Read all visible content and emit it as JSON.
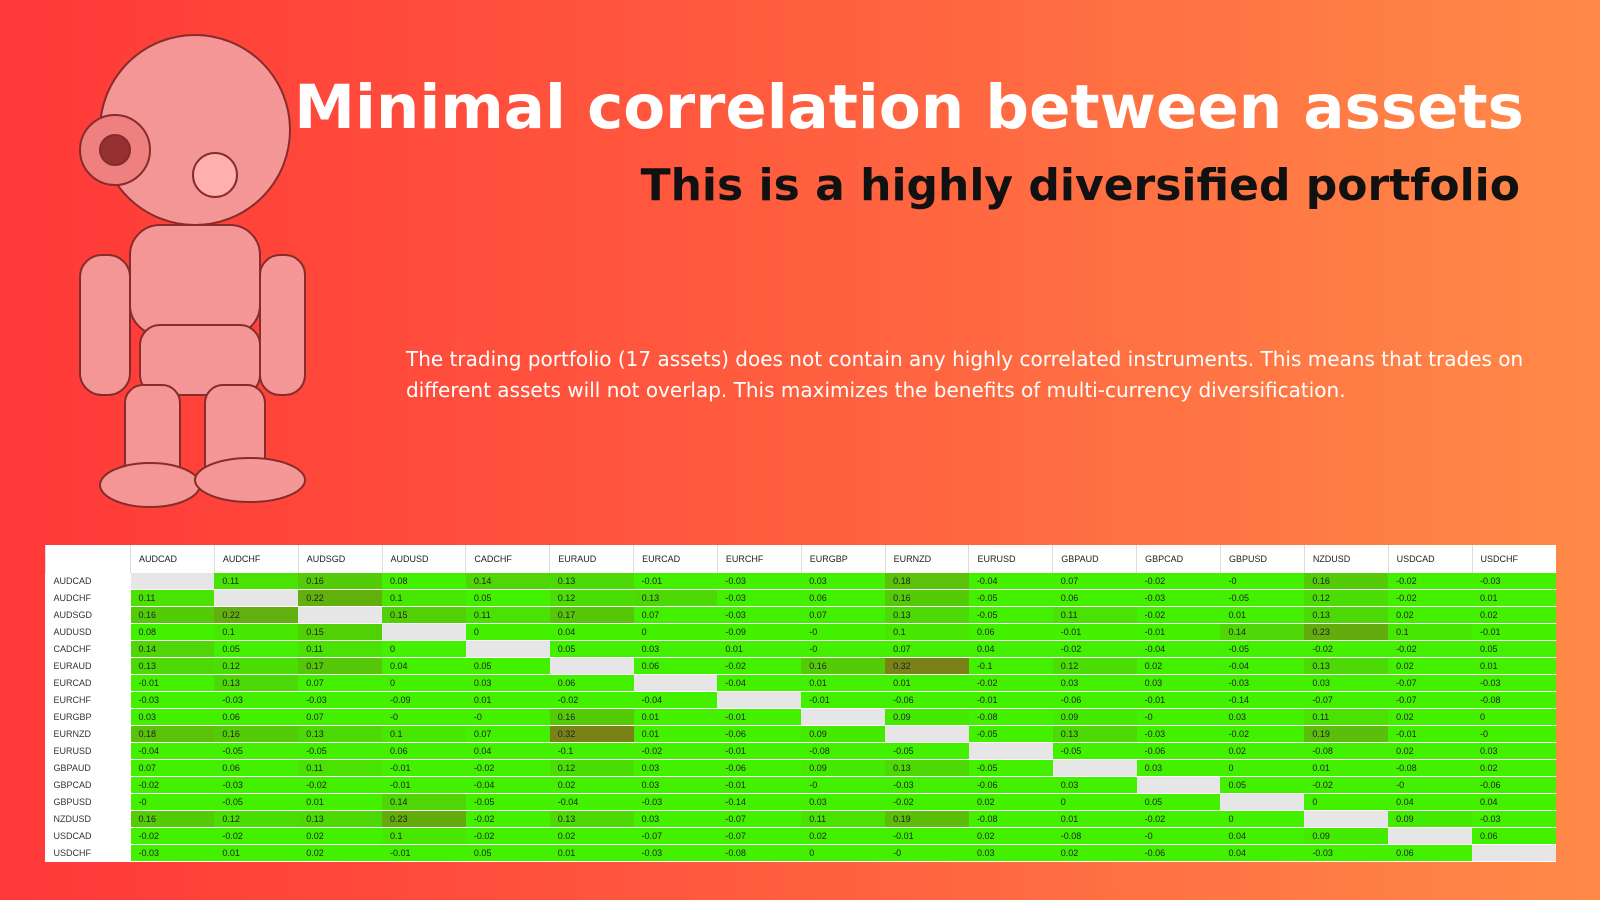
{
  "header": {
    "title": "Minimal correlation between assets",
    "subtitle": "This is a highly diversified portfolio"
  },
  "description": "The trading portfolio (17 assets) does not contain any highly correlated instruments. This means that trades on different assets will not overlap. This maximizes the benefits of multi-currency diversification.",
  "table": {
    "columns": [
      "AUDCAD",
      "AUDCHF",
      "AUDSGD",
      "AUDUSD",
      "CADCHF",
      "EURAUD",
      "EURCAD",
      "EURCHF",
      "EURGBP",
      "EURNZD",
      "EURUSD",
      "GBPAUD",
      "GBPCAD",
      "GBPUSD",
      "NZDUSD",
      "USDCAD",
      "USDCHF"
    ],
    "rows": [
      {
        "label": "AUDCAD",
        "values": [
          null,
          "0.11",
          "0.16",
          "0.08",
          "0.14",
          "0.13",
          "-0.01",
          "-0.03",
          "0.03",
          "0.18",
          "-0.04",
          "0.07",
          "-0.02",
          "-0",
          "0.16",
          "-0.02",
          "-0.03"
        ]
      },
      {
        "label": "AUDCHF",
        "values": [
          "0.11",
          null,
          "0.22",
          "0.1",
          "0.05",
          "0.12",
          "0.13",
          "-0.03",
          "0.06",
          "0.16",
          "-0.05",
          "0.06",
          "-0.03",
          "-0.05",
          "0.12",
          "-0.02",
          "0.01"
        ]
      },
      {
        "label": "AUDSGD",
        "values": [
          "0.16",
          "0.22",
          null,
          "0.15",
          "0.11",
          "0.17",
          "0.07",
          "-0.03",
          "0.07",
          "0.13",
          "-0.05",
          "0.11",
          "-0.02",
          "0.01",
          "0.13",
          "0.02",
          "0.02"
        ]
      },
      {
        "label": "AUDUSD",
        "values": [
          "0.08",
          "0.1",
          "0.15",
          null,
          "0",
          "0.04",
          "0",
          "-0.09",
          "-0",
          "0.1",
          "0.06",
          "-0.01",
          "-0.01",
          "0.14",
          "0.23",
          "0.1",
          "-0.01"
        ]
      },
      {
        "label": "CADCHF",
        "values": [
          "0.14",
          "0.05",
          "0.11",
          "0",
          null,
          "0.05",
          "0.03",
          "0.01",
          "-0",
          "0.07",
          "0.04",
          "-0.02",
          "-0.04",
          "-0.05",
          "-0.02",
          "-0.02",
          "0.05"
        ]
      },
      {
        "label": "EURAUD",
        "values": [
          "0.13",
          "0.12",
          "0.17",
          "0.04",
          "0.05",
          null,
          "0.06",
          "-0.02",
          "0.16",
          "0.32",
          "-0.1",
          "0.12",
          "0.02",
          "-0.04",
          "0.13",
          "0.02",
          "0.01"
        ]
      },
      {
        "label": "EURCAD",
        "values": [
          "-0.01",
          "0.13",
          "0.07",
          "0",
          "0.03",
          "0.06",
          null,
          "-0.04",
          "0.01",
          "0.01",
          "-0.02",
          "0.03",
          "0.03",
          "-0.03",
          "0.03",
          "-0.07",
          "-0.03"
        ]
      },
      {
        "label": "EURCHF",
        "values": [
          "-0.03",
          "-0.03",
          "-0.03",
          "-0.09",
          "0.01",
          "-0.02",
          "-0.04",
          null,
          "-0.01",
          "-0.06",
          "-0.01",
          "-0.06",
          "-0.01",
          "-0.14",
          "-0.07",
          "-0.07",
          "-0.08"
        ]
      },
      {
        "label": "EURGBP",
        "values": [
          "0.03",
          "0.06",
          "0.07",
          "-0",
          "-0",
          "0.16",
          "0.01",
          "-0.01",
          null,
          "0.09",
          "-0.08",
          "0.09",
          "-0",
          "0.03",
          "0.11",
          "0.02",
          "0"
        ]
      },
      {
        "label": "EURNZD",
        "values": [
          "0.18",
          "0.16",
          "0.13",
          "0.1",
          "0.07",
          "0.32",
          "0.01",
          "-0.06",
          "0.09",
          null,
          "-0.05",
          "0.13",
          "-0.03",
          "-0.02",
          "0.19",
          "-0.01",
          "-0"
        ]
      },
      {
        "label": "EURUSD",
        "values": [
          "-0.04",
          "-0.05",
          "-0.05",
          "0.06",
          "0.04",
          "-0.1",
          "-0.02",
          "-0.01",
          "-0.08",
          "-0.05",
          null,
          "-0.05",
          "-0.06",
          "0.02",
          "-0.08",
          "0.02",
          "0.03"
        ]
      },
      {
        "label": "GBPAUD",
        "values": [
          "0.07",
          "0.06",
          "0.11",
          "-0.01",
          "-0.02",
          "0.12",
          "0.03",
          "-0.06",
          "0.09",
          "0.13",
          "-0.05",
          null,
          "0.03",
          "0",
          "0.01",
          "-0.08",
          "0.02"
        ]
      },
      {
        "label": "GBPCAD",
        "values": [
          "-0.02",
          "-0.03",
          "-0.02",
          "-0.01",
          "-0.04",
          "0.02",
          "0.03",
          "-0.01",
          "-0",
          "-0.03",
          "-0.06",
          "0.03",
          null,
          "0.05",
          "-0.02",
          "-0",
          "-0.06"
        ]
      },
      {
        "label": "GBPUSD",
        "values": [
          "-0",
          "-0.05",
          "0.01",
          "0.14",
          "-0.05",
          "-0.04",
          "-0.03",
          "-0.14",
          "0.03",
          "-0.02",
          "0.02",
          "0",
          "0.05",
          null,
          "0",
          "0.04",
          "0.04"
        ]
      },
      {
        "label": "NZDUSD",
        "values": [
          "0.16",
          "0.12",
          "0.13",
          "0.23",
          "-0.02",
          "0.13",
          "0.03",
          "-0.07",
          "0.11",
          "0.19",
          "-0.08",
          "0.01",
          "-0.02",
          "0",
          null,
          "0.09",
          "-0.03"
        ]
      },
      {
        "label": "USDCAD",
        "values": [
          "-0.02",
          "-0.02",
          "0.02",
          "0.1",
          "-0.02",
          "0.02",
          "-0.07",
          "-0.07",
          "0.02",
          "-0.01",
          "0.02",
          "-0.08",
          "-0",
          "0.04",
          "0.09",
          null,
          "0.06"
        ]
      },
      {
        "label": "USDCHF",
        "values": [
          "-0.03",
          "0.01",
          "0.02",
          "-0.01",
          "0.05",
          "0.01",
          "-0.03",
          "-0.08",
          "0",
          "-0",
          "0.03",
          "0.02",
          "-0.06",
          "0.04",
          "-0.03",
          "0.06",
          null
        ]
      }
    ]
  }
}
